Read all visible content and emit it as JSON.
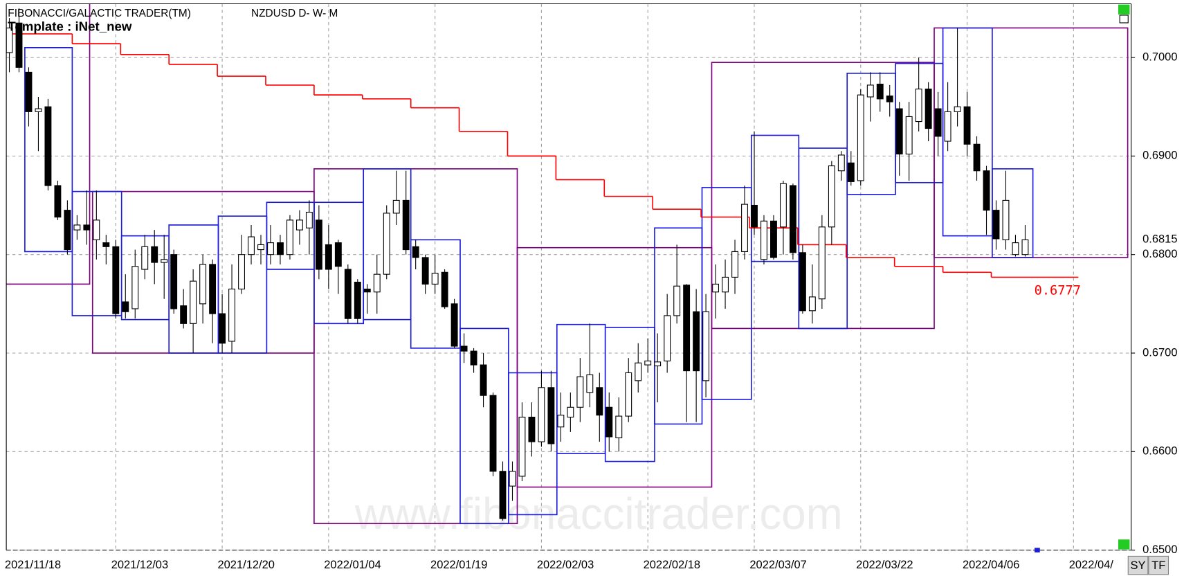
{
  "chart_data": {
    "type": "candlestick",
    "title": "FIBONACCI/GALACTIC TRADER(TM)",
    "symbol": "NZDUSD D- W- M",
    "template": "Template : iNet_new",
    "watermark": "www.fibonaccitrader.com",
    "buttons": [
      "SY",
      "TF"
    ],
    "categories": [
      "2021/11/18",
      null,
      null,
      null,
      null,
      null,
      null,
      null,
      null,
      null,
      null,
      "2021/12/03",
      null,
      null,
      null,
      null,
      null,
      null,
      null,
      null,
      null,
      null,
      "2021/12/20",
      null,
      null,
      null,
      null,
      null,
      null,
      null,
      null,
      null,
      null,
      "2022/01/04",
      null,
      null,
      null,
      null,
      null,
      null,
      null,
      null,
      null,
      null,
      "2022/01/19",
      null,
      null,
      null,
      null,
      null,
      null,
      null,
      null,
      null,
      null,
      "2022/02/03",
      null,
      null,
      null,
      null,
      null,
      null,
      null,
      null,
      null,
      null,
      "2022/02/18",
      null,
      null,
      null,
      null,
      null,
      null,
      null,
      null,
      null,
      null,
      "2022/03/07",
      null,
      null,
      null,
      null,
      null,
      null,
      null,
      null,
      null,
      null,
      "2022/03/22",
      null,
      null,
      null,
      null,
      null,
      null,
      null,
      null,
      null,
      null,
      "2022/04/06",
      null,
      null,
      null,
      null,
      null,
      null,
      null,
      null,
      null,
      null,
      "2022/04/",
      null,
      null,
      null,
      null,
      null
    ],
    "open": [
      0.7005,
      0.7035,
      0.6985,
      0.6945,
      0.695,
      0.687,
      0.6845,
      0.6825,
      0.683,
      0.6815,
      0.6812,
      0.6808,
      0.6752,
      0.6745,
      0.6785,
      0.6808,
      0.6792,
      0.68,
      0.6748,
      0.673,
      0.675,
      0.679,
      0.674,
      0.6712,
      0.6765,
      0.68,
      0.6805,
      0.68,
      0.6812,
      0.68,
      0.6825,
      0.6827,
      0.6835,
      0.681,
      0.6812,
      0.6785,
      0.6772,
      0.6765,
      0.6762,
      0.678,
      0.6842,
      0.6855,
      0.6808,
      0.6797,
      0.677,
      0.6782,
      0.675,
      0.6707,
      0.6702,
      0.6688,
      0.6657,
      0.658,
      0.6565,
      0.6575,
      0.6635,
      0.661,
      0.6665,
      0.6625,
      0.6635,
      0.6645,
      0.666,
      0.6665,
      0.6645,
      0.6614,
      0.6636,
      0.6672,
      0.6688,
      0.6687,
      0.6692,
      0.6738,
      0.6769,
      0.6742,
      0.6672,
      0.6762,
      0.6762,
      0.6777,
      0.6803,
      0.685,
      0.6795,
      0.6834,
      0.6828,
      0.687,
      0.6802,
      0.6743,
      0.6755,
      0.6828,
      0.6885,
      0.6893,
      0.6875,
      0.696,
      0.6973,
      0.6961,
      0.6948,
      0.6902,
      0.6935,
      0.6968,
      0.6948,
      0.6915,
      0.6945,
      0.695,
      0.6912,
      0.6885,
      0.6845,
      0.6815,
      0.68,
      0.68,
      null,
      null,
      null,
      null,
      null,
      null,
      null,
      null,
      null,
      null
    ],
    "high": [
      0.704,
      0.705,
      0.699,
      0.696,
      0.6958,
      0.6875,
      0.6855,
      0.684,
      0.6865,
      0.6865,
      0.682,
      0.6815,
      0.678,
      0.6805,
      0.682,
      0.6825,
      0.682,
      0.6805,
      0.6765,
      0.6785,
      0.68,
      0.6795,
      0.676,
      0.679,
      0.682,
      0.683,
      0.682,
      0.683,
      0.682,
      0.684,
      0.6845,
      0.6855,
      0.685,
      0.683,
      0.6815,
      0.679,
      0.6775,
      0.677,
      0.68,
      0.685,
      0.6885,
      0.6885,
      0.6815,
      0.68,
      0.68,
      0.6785,
      0.6755,
      0.672,
      0.6705,
      0.67,
      0.666,
      0.659,
      0.659,
      0.665,
      0.665,
      0.6682,
      0.6682,
      0.666,
      0.666,
      0.6695,
      0.673,
      0.668,
      0.666,
      0.6655,
      0.6695,
      0.671,
      0.6715,
      0.672,
      0.676,
      0.681,
      0.677,
      0.6765,
      0.676,
      0.679,
      0.6795,
      0.6815,
      0.687,
      0.6925,
      0.684,
      0.684,
      0.6875,
      0.6872,
      0.681,
      0.679,
      0.684,
      0.6895,
      0.6905,
      0.6905,
      0.6968,
      0.6985,
      0.6985,
      0.6972,
      0.6955,
      0.6955,
      0.7,
      0.6975,
      0.6965,
      0.6975,
      0.703,
      0.6965,
      0.692,
      0.689,
      0.6855,
      0.6885,
      0.682,
      0.683,
      null,
      null,
      null,
      null,
      null,
      null,
      null,
      null,
      null,
      null
    ],
    "low": [
      0.6985,
      0.6985,
      0.693,
      0.6905,
      0.6865,
      0.6835,
      0.68,
      0.6815,
      0.681,
      0.6795,
      0.679,
      0.6735,
      0.6735,
      0.6735,
      0.6775,
      0.677,
      0.6755,
      0.674,
      0.6725,
      0.67,
      0.673,
      0.671,
      0.67,
      0.67,
      0.676,
      0.679,
      0.679,
      0.679,
      0.679,
      0.6795,
      0.681,
      0.68,
      0.6775,
      0.6765,
      0.676,
      0.673,
      0.673,
      0.674,
      0.674,
      0.6775,
      0.683,
      0.68,
      0.6785,
      0.676,
      0.676,
      0.6745,
      0.6705,
      0.669,
      0.668,
      0.6645,
      0.6575,
      0.653,
      0.655,
      0.657,
      0.6595,
      0.6605,
      0.66,
      0.661,
      0.662,
      0.663,
      0.6645,
      0.661,
      0.66,
      0.66,
      0.663,
      0.666,
      0.668,
      0.665,
      0.668,
      0.673,
      0.663,
      0.663,
      0.6655,
      0.6735,
      0.6745,
      0.676,
      0.6795,
      0.682,
      0.679,
      0.6795,
      0.68,
      0.6795,
      0.674,
      0.673,
      0.6745,
      0.681,
      0.6875,
      0.687,
      0.687,
      0.6935,
      0.6945,
      0.694,
      0.688,
      0.6875,
      0.6925,
      0.6915,
      0.69,
      0.6905,
      0.693,
      0.69,
      0.6875,
      0.682,
      0.6805,
      0.6805,
      0.6798,
      0.6798,
      null,
      null,
      null,
      null,
      null,
      null,
      null,
      null,
      null,
      null
    ],
    "close": [
      0.703,
      0.699,
      0.6945,
      0.6948,
      0.687,
      0.6838,
      0.6805,
      0.683,
      0.6825,
      0.6835,
      0.6808,
      0.674,
      0.6742,
      0.6788,
      0.6808,
      0.6792,
      0.6795,
      0.6745,
      0.673,
      0.6773,
      0.679,
      0.674,
      0.671,
      0.6765,
      0.68,
      0.6818,
      0.681,
      0.6812,
      0.68,
      0.6835,
      0.6835,
      0.6843,
      0.6785,
      0.6785,
      0.6788,
      0.6735,
      0.6735,
      0.6762,
      0.678,
      0.6842,
      0.6855,
      0.6805,
      0.6797,
      0.677,
      0.6781,
      0.6747,
      0.6707,
      0.6702,
      0.6688,
      0.6657,
      0.658,
      0.6532,
      0.658,
      0.6635,
      0.661,
      0.6665,
      0.6608,
      0.6637,
      0.6645,
      0.6676,
      0.6678,
      0.6637,
      0.6615,
      0.6636,
      0.668,
      0.669,
      0.6692,
      0.6691,
      0.6738,
      0.6768,
      0.6682,
      0.6682,
      0.6742,
      0.677,
      0.6777,
      0.6803,
      0.6851,
      0.6828,
      0.6834,
      0.6797,
      0.6872,
      0.6802,
      0.6743,
      0.6757,
      0.6828,
      0.689,
      0.6901,
      0.6874,
      0.6962,
      0.6972,
      0.6958,
      0.6955,
      0.6902,
      0.694,
      0.6968,
      0.6928,
      0.692,
      0.6945,
      0.695,
      0.6912,
      0.6885,
      0.6845,
      0.6816,
      0.6855,
      0.6812,
      0.6815,
      null,
      null,
      null,
      null,
      null,
      null,
      null,
      null,
      null,
      null
    ],
    "up_color": "#ffffff",
    "down_color": "#000000",
    "ylim": [
      0.65,
      0.70545
    ],
    "yticks": [
      {
        "value": 0.65,
        "label": "0.6500"
      },
      {
        "value": 0.66,
        "label": "0.6600"
      },
      {
        "value": 0.67,
        "label": "0.6700"
      },
      {
        "value": 0.68,
        "label": "0.6800"
      },
      {
        "value": 0.69,
        "label": "0.6900"
      },
      {
        "value": 0.7,
        "label": "0.7000"
      }
    ],
    "grid": true,
    "last_price": {
      "value": 0.6815,
      "label": "0.6815"
    },
    "levels": {
      "color": "#ff0000",
      "x": [
        -0.5,
        6.5,
        11.5,
        16.5,
        21.5,
        26.5,
        31.5,
        36.5,
        41.5,
        46.5,
        51.5,
        56.5,
        61.5,
        66.5,
        71.5,
        76.5,
        81.5,
        86.5,
        91.5,
        96.5,
        101.5,
        110.5
      ],
      "values": [
        0.7024,
        0.7014,
        0.7003,
        0.6993,
        0.6981,
        0.6972,
        0.6962,
        0.6958,
        0.6949,
        0.6925,
        0.69,
        0.6876,
        0.6859,
        0.6846,
        0.6838,
        0.6827,
        0.681,
        0.6797,
        0.6788,
        0.6782,
        0.6777,
        0.6777
      ],
      "end_label": "0.6777"
    },
    "boxes": [
      {
        "color": "#800080",
        "x0": -1,
        "x1": 8.3,
        "top": 0.706,
        "bottom": 0.677
      },
      {
        "color": "#800080",
        "x0": 8.6,
        "x1": 31.5,
        "top": 0.6864,
        "bottom": 0.67
      },
      {
        "color": "#800080",
        "x0": 31.5,
        "x1": 52.5,
        "top": 0.6887,
        "bottom": 0.6527
      },
      {
        "color": "#800080",
        "x0": 52.5,
        "x1": 72.6,
        "top": 0.6807,
        "bottom": 0.6564
      },
      {
        "color": "#800080",
        "x0": 72.6,
        "x1": 95.6,
        "top": 0.6995,
        "bottom": 0.6725
      },
      {
        "color": "#800080",
        "x0": 95.6,
        "x1": 115.6,
        "top": 0.703,
        "bottom": 0.6797
      },
      {
        "color": "#1c1cdc",
        "x0": 1.6,
        "x1": 6.5,
        "top": 0.701,
        "bottom": 0.6803
      },
      {
        "color": "#1c1cdc",
        "x0": 6.5,
        "x1": 11.6,
        "top": 0.6864,
        "bottom": 0.6738
      },
      {
        "color": "#1c1cdc",
        "x0": 11.6,
        "x1": 16.5,
        "top": 0.6819,
        "bottom": 0.6734
      },
      {
        "color": "#1c1cdc",
        "x0": 16.5,
        "x1": 21.6,
        "top": 0.683,
        "bottom": 0.67
      },
      {
        "color": "#1c1cdc",
        "x0": 21.6,
        "x1": 26.6,
        "top": 0.6839,
        "bottom": 0.67
      },
      {
        "color": "#1c1cdc",
        "x0": 26.6,
        "x1": 31.5,
        "top": 0.6853,
        "bottom": 0.6785
      },
      {
        "color": "#1c1cdc",
        "x0": 31.5,
        "x1": 36.6,
        "top": 0.6853,
        "bottom": 0.673
      },
      {
        "color": "#1c1cdc",
        "x0": 36.6,
        "x1": 41.5,
        "top": 0.6887,
        "bottom": 0.6734
      },
      {
        "color": "#1c1cdc",
        "x0": 41.5,
        "x1": 46.6,
        "top": 0.6815,
        "bottom": 0.6705
      },
      {
        "color": "#1c1cdc",
        "x0": 46.6,
        "x1": 51.6,
        "top": 0.6725,
        "bottom": 0.6527
      },
      {
        "color": "#1c1cdc",
        "x0": 51.6,
        "x1": 56.6,
        "top": 0.668,
        "bottom": 0.6536
      },
      {
        "color": "#1c1cdc",
        "x0": 56.6,
        "x1": 61.6,
        "top": 0.6729,
        "bottom": 0.6598
      },
      {
        "color": "#1c1cdc",
        "x0": 61.6,
        "x1": 66.7,
        "top": 0.6726,
        "bottom": 0.659
      },
      {
        "color": "#1c1cdc",
        "x0": 66.7,
        "x1": 71.6,
        "top": 0.6827,
        "bottom": 0.6628
      },
      {
        "color": "#1c1cdc",
        "x0": 71.6,
        "x1": 76.7,
        "top": 0.6868,
        "bottom": 0.6653
      },
      {
        "color": "#1c1cdc",
        "x0": 76.7,
        "x1": 81.6,
        "top": 0.6921,
        "bottom": 0.6793
      },
      {
        "color": "#1c1cdc",
        "x0": 81.6,
        "x1": 86.6,
        "top": 0.6908,
        "bottom": 0.6725
      },
      {
        "color": "#1c1cdc",
        "x0": 86.6,
        "x1": 91.6,
        "top": 0.6984,
        "bottom": 0.6861
      },
      {
        "color": "#1c1cdc",
        "x0": 91.6,
        "x1": 96.5,
        "top": 0.6994,
        "bottom": 0.6873
      },
      {
        "color": "#1c1cdc",
        "x0": 96.5,
        "x1": 101.6,
        "top": 0.703,
        "bottom": 0.6819
      },
      {
        "color": "#1c1cdc",
        "x0": 101.6,
        "x1": 105.8,
        "top": 0.6887,
        "bottom": 0.6797
      }
    ]
  }
}
